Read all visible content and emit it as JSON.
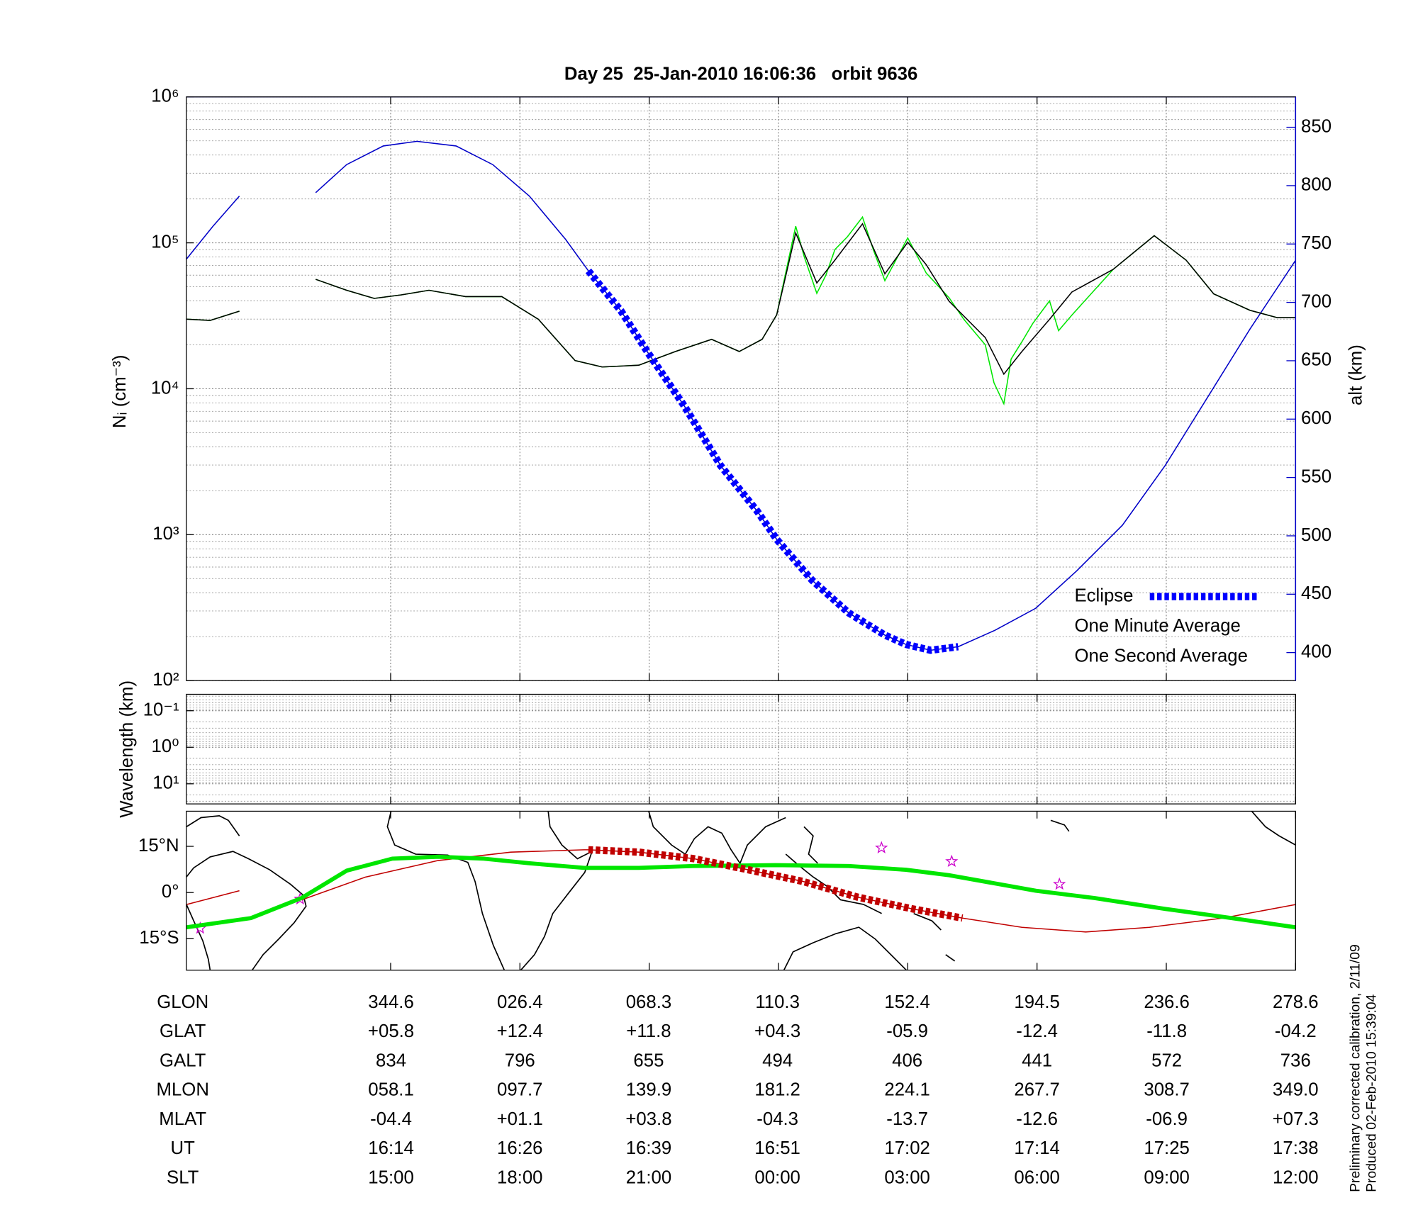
{
  "chart_data": [
    {
      "type": "line",
      "title": "Day 25  25-Jan-2010 16:06:36   orbit 9636",
      "ylabel": "Nᵢ (cm⁻³)",
      "y2label": "alt (km)",
      "yscale": "log",
      "xlim": [
        10.26,
        36
      ],
      "xticks": [
        15,
        18,
        21,
        24,
        27,
        30,
        33,
        36
      ],
      "ylim": [
        100,
        1000000
      ],
      "yticks": [
        {
          "value": 100,
          "label": "10²"
        },
        {
          "value": 1000,
          "label": "10³"
        },
        {
          "value": 10000,
          "label": "10⁴"
        },
        {
          "value": 100000,
          "label": "10⁵"
        },
        {
          "value": 1000000,
          "label": "10⁶"
        }
      ],
      "y2lim": [
        376,
        876
      ],
      "y2ticks": [
        400,
        450,
        500,
        550,
        600,
        650,
        700,
        750,
        800,
        850
      ],
      "y2color": "#0000c8",
      "grid": true,
      "legend": "lower right",
      "series": [
        {
          "name": "Eclipse",
          "color": "#0000ff",
          "axis": "y2",
          "linestyle": "dashed-thick",
          "x": [
            19.59,
            20.34,
            20.97,
            21.82,
            22.66,
            23.51,
            23.96,
            24.78,
            25.63,
            26.47,
            26.96,
            27.53,
            28.17
          ],
          "values": [
            727,
            693,
            657,
            611,
            560,
            521,
            497,
            462,
            434,
            415,
            407,
            402,
            405
          ]
        },
        {
          "name": "One Minute Average",
          "color": "#000000",
          "linestyle": "thin",
          "x": [
            10.26,
            10.81,
            11.49,
            12.5,
            13.26,
            13.98,
            14.62,
            15.25,
            15.89,
            16.74,
            17.58,
            18.43,
            19.28,
            19.91,
            20.76,
            21.61,
            22.45,
            23.09,
            23.62,
            23.96,
            24.4,
            24.89,
            25.31,
            25.95,
            26.47,
            27.0,
            27.43,
            27.96,
            28.8,
            29.23,
            29.65,
            30.29,
            30.81,
            31.77,
            32.72,
            33.46,
            34.1,
            34.94,
            35.58,
            36.0
          ],
          "values": [
            30000,
            29400,
            34000,
            null,
            56200,
            47300,
            41600,
            44000,
            47300,
            42800,
            42800,
            29900,
            15600,
            14100,
            14500,
            18000,
            21800,
            18000,
            21800,
            32100,
            117000,
            53100,
            76100,
            135000,
            61300,
            101000,
            70800,
            39800,
            22400,
            12600,
            18000,
            29900,
            46000,
            65900,
            112000,
            76100,
            44700,
            34500,
            30700,
            30700
          ]
        },
        {
          "name": "One Second Average",
          "color": "#00e600",
          "linestyle": "thin",
          "x": [
            10.26,
            10.81,
            11.49,
            12.5,
            13.26,
            13.98,
            14.62,
            15.25,
            15.89,
            16.74,
            17.58,
            18.43,
            19.28,
            19.91,
            20.76,
            21.61,
            22.45,
            23.09,
            23.62,
            23.96,
            24.4,
            24.6,
            24.89,
            25.1,
            25.31,
            25.6,
            25.95,
            26.2,
            26.47,
            27.0,
            27.43,
            27.96,
            28.3,
            28.8,
            29.0,
            29.23,
            29.4,
            29.65,
            29.9,
            30.29,
            30.5,
            30.81,
            31.77,
            32.72,
            33.46,
            34.1,
            34.94,
            35.58,
            36.0
          ],
          "values": [
            30000,
            29400,
            34000,
            null,
            56200,
            47300,
            41600,
            44000,
            47300,
            42800,
            42800,
            29900,
            15600,
            14100,
            14500,
            18000,
            21800,
            18000,
            21800,
            32100,
            130000,
            80000,
            45000,
            60000,
            90000,
            110000,
            150000,
            90000,
            55000,
            108000,
            62000,
            42000,
            30000,
            20000,
            11000,
            7900,
            16000,
            21000,
            28000,
            40000,
            25000,
            32000,
            65900,
            112000,
            76100,
            44700,
            34500,
            30700,
            30700
          ]
        },
        {
          "color": "#0000c8",
          "axis": "y2",
          "linestyle": "thin",
          "x": [
            10.26,
            10.87,
            11.49,
            12.5,
            13.26,
            13.98,
            14.83,
            15.61,
            16.52,
            17.37,
            18.22,
            19.06,
            19.59,
            20.34,
            20.97,
            21.82,
            22.66,
            23.51,
            23.96,
            24.78,
            25.63,
            26.47,
            26.96,
            27.53,
            28.17,
            29.02,
            29.97,
            30.92,
            31.98,
            32.97,
            33.88,
            34.94,
            36.0
          ],
          "values": [
            737,
            765,
            791,
            null,
            794,
            818,
            834,
            838,
            834,
            818,
            791,
            754,
            727,
            693,
            657,
            611,
            560,
            521,
            497,
            462,
            434,
            415,
            407,
            402,
            405,
            419,
            438,
            470,
            509,
            560,
            614,
            677,
            736
          ]
        }
      ]
    },
    {
      "type": "line",
      "ylabel": "Wavelength (km)",
      "yscale": "log",
      "yinverted": true,
      "xlim": [
        10.26,
        36
      ],
      "xticks": [
        15,
        18,
        21,
        24,
        27,
        30,
        33,
        36
      ],
      "ylim": [
        0.0355,
        35.5
      ],
      "yticks": [
        {
          "value": 0.1,
          "label": "10⁻¹"
        },
        {
          "value": 1,
          "label": "10⁰"
        },
        {
          "value": 10,
          "label": "10¹"
        }
      ],
      "grid": true
    },
    {
      "type": "map",
      "xlim": [
        10.26,
        36
      ],
      "xticks": [
        15,
        18,
        21,
        24,
        27,
        30,
        33,
        36
      ],
      "ylim": [
        -25.2,
        26.4
      ],
      "yticks": [
        {
          "value": 15,
          "label": "15°N"
        },
        {
          "value": 0,
          "label": "0°"
        },
        {
          "value": -15,
          "label": "15°S"
        }
      ],
      "grid": false,
      "series": [
        {
          "color": "#c00000",
          "linestyle": "dashed-thick",
          "x": [
            19.59,
            20.76,
            22.03,
            23.3,
            24.57,
            25.84,
            27.11,
            28.27
          ],
          "values": [
            13.9,
            13.1,
            11.0,
            7.4,
            3.6,
            -1.5,
            -5.3,
            -8.3
          ]
        },
        {
          "color": "#00e600",
          "linestyle": "thick",
          "x": [
            10.26,
            11.76,
            12.93,
            13.98,
            15.04,
            16.1,
            17.16,
            18.22,
            19.49,
            20.76,
            22.03,
            23.93,
            25.63,
            26.96,
            27.96,
            29.97,
            31.34,
            32.97,
            34.52,
            36.0
          ],
          "values": [
            -11.3,
            -8.3,
            -1.8,
            7.1,
            11.0,
            11.6,
            11.0,
            9.5,
            8.0,
            8.0,
            8.6,
            8.9,
            8.6,
            7.4,
            5.6,
            0.6,
            -1.8,
            -5.3,
            -8.3,
            -11.3
          ]
        },
        {
          "color": "#c00000",
          "linestyle": "thin",
          "x": [
            10.26,
            11.49,
            12.0,
            12.93,
            14.41,
            16.1,
            17.79,
            19.49,
            19.59,
            20.76,
            22.03,
            23.3,
            24.57,
            25.84,
            27.11,
            28.27,
            29.65,
            31.13,
            32.61,
            34.31,
            36.0
          ],
          "values": [
            -3.9,
            0.6,
            null,
            -2.4,
            5.0,
            10.4,
            13.1,
            13.9,
            13.9,
            13.1,
            11.0,
            7.4,
            3.6,
            -1.5,
            -5.3,
            -8.3,
            -11.3,
            -12.8,
            -11.3,
            -8.3,
            -3.9
          ]
        },
        {
          "color": "#cc00cc",
          "marker": "star",
          "x": [
            12.9,
            10.58,
            26.39,
            28.02,
            30.52
          ],
          "values": [
            -2.1,
            -11.6,
            14.5,
            10.1,
            2.7
          ]
        }
      ]
    }
  ],
  "table": {
    "rows": [
      [
        "GLON",
        "344.6",
        "026.4",
        "068.3",
        "110.3",
        "152.4",
        "194.5",
        "236.6",
        "278.6"
      ],
      [
        "GLAT",
        "+05.8",
        "+12.4",
        "+11.8",
        "+04.3",
        "-05.9",
        "-12.4",
        "-11.8",
        "-04.2"
      ],
      [
        "GALT",
        "834",
        "796",
        "655",
        "494",
        "406",
        "441",
        "572",
        "736"
      ],
      [
        "MLON",
        "058.1",
        "097.7",
        "139.9",
        "181.2",
        "224.1",
        "267.7",
        "308.7",
        "349.0"
      ],
      [
        "MLAT",
        "-04.4",
        "+01.1",
        "+03.8",
        "-04.3",
        "-13.7",
        "-12.6",
        "-06.9",
        "+07.3"
      ],
      [
        "UT",
        "16:14",
        "16:26",
        "16:39",
        "16:51",
        "17:02",
        "17:14",
        "17:25",
        "17:38"
      ],
      [
        "SLT",
        "15:00",
        "18:00",
        "21:00",
        "00:00",
        "03:00",
        "06:00",
        "09:00",
        "12:00"
      ]
    ]
  },
  "footnote": [
    "Preliminary corrected calibration, 2/11/09",
    "Produced 02-Feb-2010 15:39:04"
  ]
}
